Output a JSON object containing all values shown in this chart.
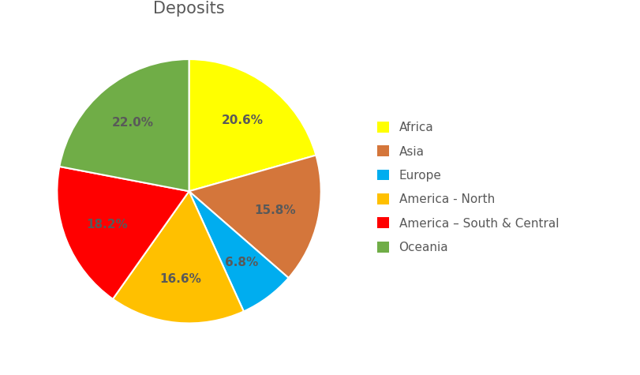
{
  "title": "Deposits",
  "slices": [
    {
      "label": "Africa",
      "pct": 20.6,
      "color": "#FFFF00"
    },
    {
      "label": "Asia",
      "pct": 15.8,
      "color": "#D4763B"
    },
    {
      "label": "Europe",
      "pct": 6.8,
      "color": "#00ADEF"
    },
    {
      "label": "America - North",
      "pct": 16.6,
      "color": "#FFC000"
    },
    {
      "label": "America – South & Central",
      "pct": 18.2,
      "color": "#FF0000"
    },
    {
      "label": "Oceania",
      "pct": 22.0,
      "color": "#70AD47"
    }
  ],
  "title_fontsize": 15,
  "title_color": "#595959",
  "label_fontsize": 11,
  "legend_fontsize": 11,
  "background_color": "#FFFFFF",
  "startangle": 90,
  "label_color": "#595959"
}
